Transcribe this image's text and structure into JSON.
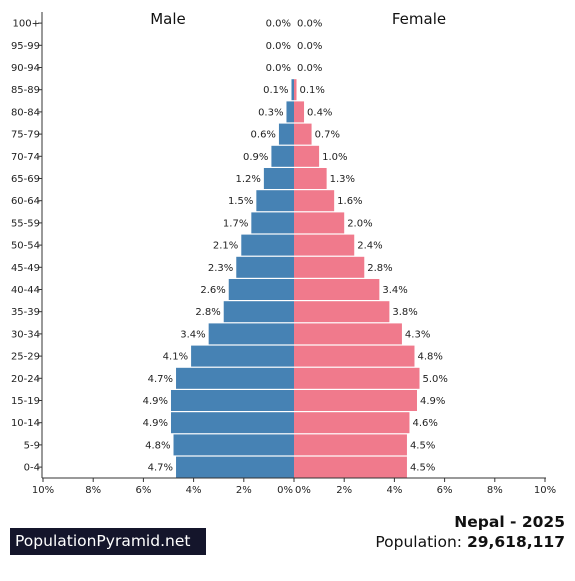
{
  "chart_data": {
    "type": "bar",
    "orientation": "horizontal-pyramid",
    "title": "Nepal - 2025",
    "population_label": "Population:",
    "population_value": "29,618,117",
    "left_label": "Male",
    "right_label": "Female",
    "categories": [
      "100+",
      "95-99",
      "90-94",
      "85-89",
      "80-84",
      "75-79",
      "70-74",
      "65-69",
      "60-64",
      "55-59",
      "50-54",
      "45-49",
      "40-44",
      "35-39",
      "30-34",
      "25-29",
      "20-24",
      "15-19",
      "10-14",
      "5-9",
      "0-4"
    ],
    "series": [
      {
        "name": "Male",
        "values": [
          0.0,
          0.0,
          0.0,
          0.1,
          0.3,
          0.6,
          0.9,
          1.2,
          1.5,
          1.7,
          2.1,
          2.3,
          2.6,
          2.8,
          3.4,
          4.1,
          4.7,
          4.9,
          4.9,
          4.8,
          4.7
        ],
        "labels": [
          "0.0%",
          "0.0%",
          "0.0%",
          "0.1%",
          "0.3%",
          "0.6%",
          "0.9%",
          "1.2%",
          "1.5%",
          "1.7%",
          "2.1%",
          "2.3%",
          "2.6%",
          "2.8%",
          "3.4%",
          "4.1%",
          "4.7%",
          "4.9%",
          "4.9%",
          "4.8%",
          "4.7%"
        ]
      },
      {
        "name": "Female",
        "values": [
          0.0,
          0.0,
          0.0,
          0.1,
          0.4,
          0.7,
          1.0,
          1.3,
          1.6,
          2.0,
          2.4,
          2.8,
          3.4,
          3.8,
          4.3,
          4.8,
          5.0,
          4.9,
          4.6,
          4.5,
          4.5
        ],
        "labels": [
          "0.0%",
          "0.0%",
          "0.0%",
          "0.1%",
          "0.4%",
          "0.7%",
          "1.0%",
          "1.3%",
          "1.6%",
          "2.0%",
          "2.4%",
          "2.8%",
          "3.4%",
          "3.8%",
          "4.3%",
          "4.8%",
          "5.0%",
          "4.9%",
          "4.6%",
          "4.5%",
          "4.5%"
        ]
      }
    ],
    "x_ticks_left": [
      "10%",
      "8%",
      "6%",
      "4%",
      "2%",
      "0%"
    ],
    "x_ticks_right": [
      "0%",
      "2%",
      "4%",
      "6%",
      "8%",
      "10%"
    ],
    "xlim": [
      0,
      10
    ],
    "grid": false,
    "colors": {
      "male": "#4682b4",
      "female": "#f07a8c",
      "axis": "#333333"
    }
  },
  "brand": "PopulationPyramid.net"
}
